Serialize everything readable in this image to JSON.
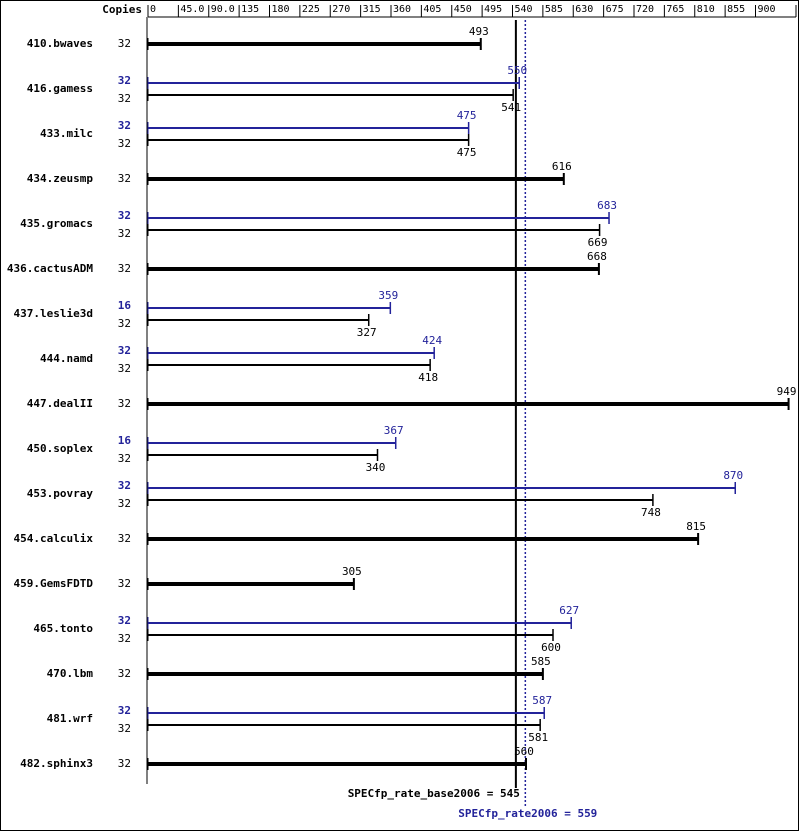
{
  "chart_data": {
    "type": "spec-bar",
    "copies_header": "Copies",
    "categories": [
      "410.bwaves",
      "416.gamess",
      "433.milc",
      "434.zeusmp",
      "435.gromacs",
      "436.cactusADM",
      "437.leslie3d",
      "444.namd",
      "447.dealII",
      "450.soplex",
      "453.povray",
      "454.calculix",
      "459.GemsFDTD",
      "465.tonto",
      "470.lbm",
      "481.wrf",
      "482.sphinx3"
    ],
    "series": [
      {
        "color": "#000000",
        "copies": [
          32,
          32,
          32,
          32,
          32,
          32,
          32,
          32,
          32,
          32,
          32,
          32,
          32,
          32,
          32,
          32,
          32
        ],
        "values": [
          493,
          541,
          475,
          616,
          669,
          668,
          327,
          418,
          949,
          340,
          748,
          815,
          305,
          600,
          585,
          581,
          560
        ]
      },
      {
        "color": "#23239a",
        "copies": [
          null,
          32,
          32,
          null,
          32,
          null,
          16,
          32,
          null,
          16,
          32,
          null,
          null,
          32,
          null,
          32,
          null
        ],
        "values": [
          null,
          550,
          475,
          null,
          683,
          null,
          359,
          424,
          null,
          367,
          870,
          null,
          null,
          627,
          null,
          587,
          null
        ]
      }
    ],
    "xlim": [
      0,
      960
    ],
    "xticks": [
      0,
      {
        "value": 45,
        "label": "45.0"
      },
      {
        "value": 90,
        "label": "90.0"
      },
      135,
      180,
      225,
      270,
      315,
      360,
      405,
      450,
      495,
      540,
      585,
      630,
      675,
      720,
      765,
      810,
      855,
      900,
      960
    ],
    "reference_lines": [
      {
        "label": "SPECfp_rate_base2006 = 545",
        "value": 545,
        "color": "#000000",
        "style": "solid"
      },
      {
        "label": "SPECfp_rate2006 = 559",
        "value": 559,
        "color": "#23239a",
        "style": "dotted"
      }
    ]
  }
}
